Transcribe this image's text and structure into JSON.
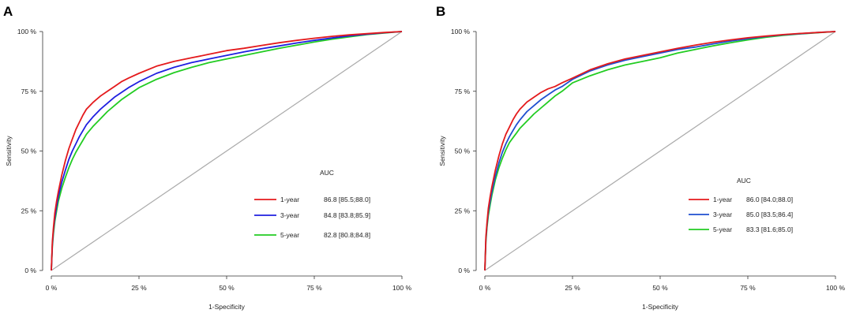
{
  "chart_data": [
    {
      "panel": "A",
      "type": "line",
      "xlabel": "1-Specificity",
      "ylabel": "Sensitivity",
      "xticks": [
        "0 %",
        "25 %",
        "50 %",
        "75 %",
        "100 %"
      ],
      "yticks": [
        "0 %",
        "25 %",
        "50 %",
        "75 %",
        "100 %"
      ],
      "xlim": [
        0,
        100
      ],
      "ylim": [
        0,
        100
      ],
      "legend_title": "AUC",
      "legend_position": "center-right",
      "reference_line": {
        "color": "#aaaaaa",
        "x": [
          0,
          100
        ],
        "y": [
          0,
          100
        ]
      },
      "series": [
        {
          "name": "1-year",
          "auc": "86.8 [85.5;88.0]",
          "color": "#e41a1c",
          "x": [
            0,
            0.3,
            0.6,
            1,
            1.5,
            2,
            3,
            4,
            5,
            6,
            7,
            8,
            9,
            10,
            12,
            14,
            16,
            18,
            20,
            22,
            25,
            30,
            35,
            40,
            45,
            50,
            55,
            60,
            65,
            70,
            75,
            80,
            85,
            90,
            95,
            100
          ],
          "y": [
            0,
            12,
            18,
            24,
            29,
            33,
            40,
            46,
            51,
            55,
            59,
            62,
            65,
            67.5,
            70.5,
            73,
            75,
            77,
            79,
            80.5,
            82.5,
            85.5,
            87.5,
            89,
            90.5,
            92,
            93,
            94.2,
            95.3,
            96.3,
            97.2,
            98,
            98.6,
            99.1,
            99.6,
            100
          ]
        },
        {
          "name": "3-year",
          "auc": "84.8 [83.8;85.9]",
          "color": "#1f1fe0",
          "x": [
            0,
            0.3,
            0.6,
            1,
            1.5,
            2,
            3,
            4,
            5,
            6,
            7,
            8,
            9,
            10,
            12,
            14,
            16,
            18,
            20,
            22,
            25,
            30,
            35,
            40,
            45,
            50,
            55,
            60,
            65,
            70,
            75,
            80,
            85,
            90,
            95,
            100
          ],
          "y": [
            0,
            11,
            17,
            22,
            27,
            31,
            37,
            42,
            46.5,
            50,
            53,
            56,
            58.5,
            61,
            64.5,
            67.5,
            70,
            72.5,
            74.5,
            76.5,
            79,
            82.5,
            85,
            87,
            88.5,
            90,
            91.5,
            92.8,
            94,
            95.2,
            96.3,
            97.3,
            98.2,
            98.9,
            99.5,
            100
          ]
        },
        {
          "name": "5-year",
          "auc": "82.8 [80.8;84.8]",
          "color": "#22cc22",
          "x": [
            0,
            0.3,
            0.6,
            1,
            1.5,
            2,
            3,
            4,
            5,
            6,
            7,
            8,
            9,
            10,
            12,
            14,
            16,
            18,
            20,
            22,
            25,
            30,
            35,
            40,
            45,
            50,
            55,
            60,
            65,
            70,
            75,
            80,
            85,
            90,
            95,
            100
          ],
          "y": [
            0,
            10,
            15.5,
            20.5,
            25,
            29,
            34.5,
            39,
            43,
            46.5,
            49.5,
            52,
            54.5,
            57,
            60.5,
            63.5,
            66.5,
            69,
            71.5,
            73.5,
            76.5,
            80,
            82.8,
            85,
            87,
            88.5,
            90,
            91.5,
            93,
            94.3,
            95.6,
            96.8,
            97.8,
            98.7,
            99.4,
            100
          ]
        }
      ]
    },
    {
      "panel": "B",
      "type": "line",
      "xlabel": "1-Specificity",
      "ylabel": "Sensitivity",
      "xticks": [
        "0 %",
        "25 %",
        "50 %",
        "75 %",
        "100 %"
      ],
      "yticks": [
        "0 %",
        "25 %",
        "50 %",
        "75 %",
        "100 %"
      ],
      "xlim": [
        0,
        100
      ],
      "ylim": [
        0,
        100
      ],
      "legend_title": "AUC",
      "legend_position": "center-right",
      "reference_line": {
        "color": "#aaaaaa",
        "x": [
          0,
          100
        ],
        "y": [
          0,
          100
        ]
      },
      "series": [
        {
          "name": "1-year",
          "auc": "86.0 [84.0;88.0]",
          "color": "#e41a1c",
          "x": [
            0,
            0.3,
            0.6,
            1,
            1.5,
            2,
            3,
            4,
            5,
            6,
            7,
            8,
            9,
            10,
            12,
            14,
            16,
            18,
            20,
            22,
            25,
            30,
            35,
            40,
            45,
            50,
            55,
            60,
            65,
            70,
            75,
            80,
            85,
            90,
            95,
            100
          ],
          "y": [
            0,
            14,
            20,
            26,
            31,
            35,
            42,
            48,
            53,
            57,
            60,
            63,
            65.5,
            67.5,
            70.5,
            72.5,
            74.5,
            76,
            77,
            78.5,
            80.5,
            84,
            86.5,
            88.5,
            90,
            91.5,
            93,
            94.3,
            95.5,
            96.5,
            97.4,
            98.1,
            98.7,
            99.2,
            99.6,
            100
          ]
        },
        {
          "name": "3-year",
          "auc": "85.0 [83.5;86.4]",
          "color": "#1f4fd0",
          "x": [
            0,
            0.3,
            0.6,
            1,
            1.5,
            2,
            3,
            4,
            5,
            6,
            7,
            8,
            9,
            10,
            12,
            14,
            16,
            18,
            20,
            22,
            25,
            30,
            35,
            40,
            45,
            50,
            55,
            60,
            65,
            70,
            75,
            80,
            85,
            90,
            95,
            100
          ],
          "y": [
            0,
            13,
            19,
            24.5,
            29,
            33,
            39.5,
            45,
            49.5,
            53,
            56,
            58.5,
            61,
            63,
            66.5,
            69,
            71.5,
            73.5,
            75.5,
            77,
            80,
            83.5,
            86,
            88,
            89.5,
            91,
            92.5,
            93.5,
            94.8,
            96,
            97,
            97.9,
            98.6,
            99.1,
            99.6,
            100
          ]
        },
        {
          "name": "5-year",
          "auc": "83.3 [81.6;85.0]",
          "color": "#22cc22",
          "x": [
            0,
            0.3,
            0.6,
            1,
            1.5,
            2,
            3,
            4,
            5,
            6,
            7,
            8,
            9,
            10,
            12,
            14,
            16,
            18,
            20,
            22,
            25,
            30,
            35,
            40,
            45,
            50,
            55,
            60,
            65,
            70,
            75,
            80,
            85,
            90,
            95,
            100
          ],
          "y": [
            0,
            12,
            18,
            23,
            27.5,
            31.5,
            38,
            43,
            47,
            50.5,
            53.5,
            55.5,
            57.5,
            59.5,
            62.5,
            65.5,
            68,
            70.5,
            73,
            75,
            78.5,
            81.5,
            84,
            86,
            87.5,
            89,
            91,
            92.5,
            94,
            95.3,
            96.5,
            97.6,
            98.4,
            99,
            99.5,
            100
          ]
        }
      ]
    }
  ]
}
